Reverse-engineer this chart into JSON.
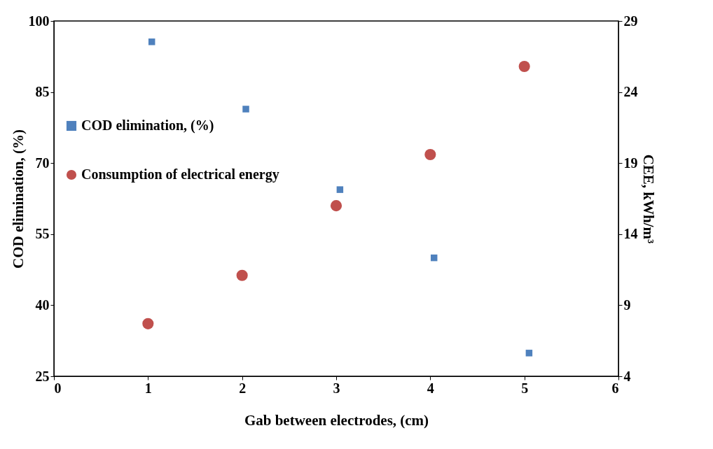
{
  "chart_data": {
    "type": "scatter",
    "xlabel": "Gab between electrodes, (cm)",
    "ylabel": "COD elimination, (%)",
    "y2label": "CEE, kWh/m³",
    "series": [
      {
        "name": "COD elimination, (%)",
        "color": "#4f81bd",
        "marker": "square",
        "x": [
          1.04,
          2.04,
          3.04,
          4.04,
          5.05
        ],
        "values": [
          95.6,
          81.4,
          64.4,
          50.0,
          29.9
        ]
      },
      {
        "name": "Consumption of electrical energy",
        "color": "#c0504d",
        "marker": "circle",
        "axis": "y2",
        "x": [
          1,
          2,
          3,
          4,
          5
        ],
        "values": [
          7.7,
          11.1,
          16.0,
          19.6,
          25.8
        ]
      }
    ],
    "xlim": [
      0,
      6
    ],
    "xticks": [
      0,
      1,
      2,
      3,
      4,
      5,
      6
    ],
    "ylim": [
      25,
      100
    ],
    "yticks": [
      25,
      40,
      55,
      70,
      85,
      100
    ],
    "y2lim": [
      4,
      29
    ],
    "y2ticks": [
      4,
      9,
      14,
      19,
      24,
      29
    ],
    "grid": false,
    "legend": "left"
  }
}
